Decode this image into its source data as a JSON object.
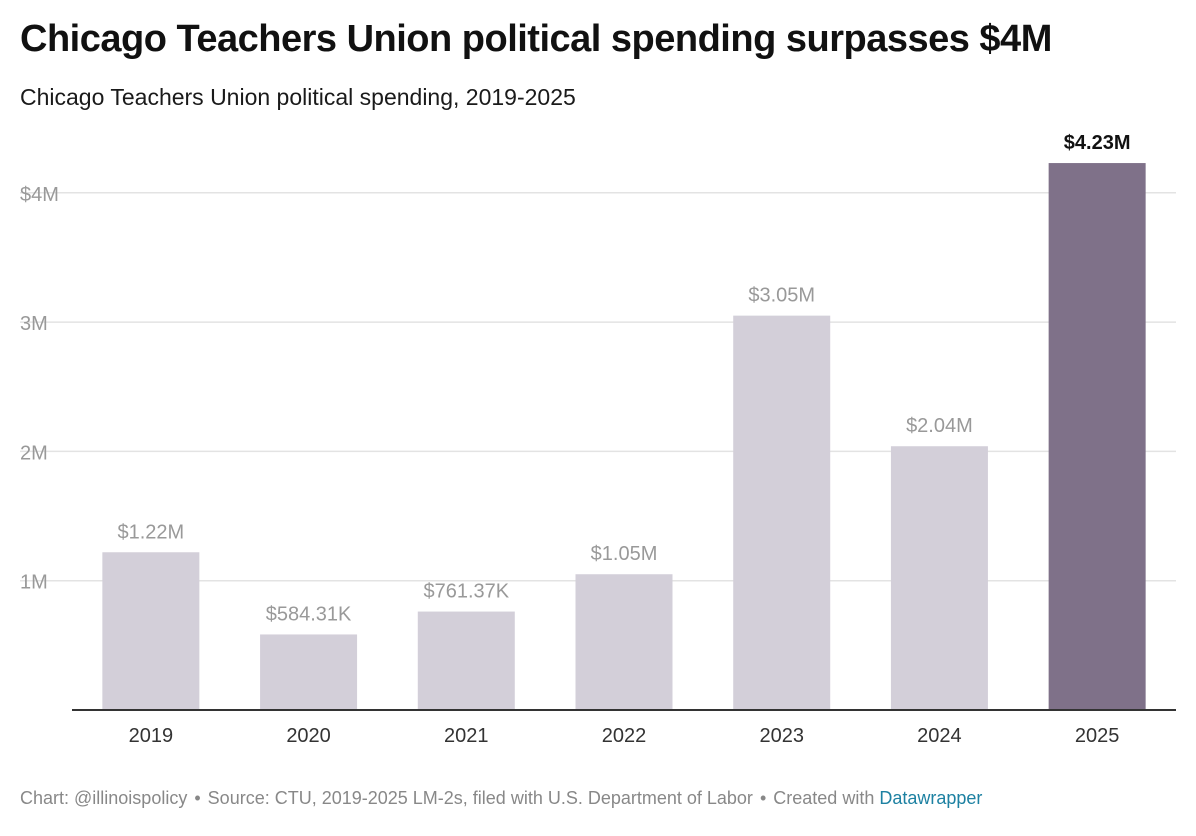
{
  "chart_data": {
    "type": "bar",
    "title": "Chicago Teachers Union political spending surpasses $4M",
    "subtitle": "Chicago Teachers Union political spending, 2019-2025",
    "categories": [
      "2019",
      "2020",
      "2021",
      "2022",
      "2023",
      "2024",
      "2025"
    ],
    "values": [
      1220000,
      584310,
      761370,
      1050000,
      3050000,
      2040000,
      4230000
    ],
    "data_labels": [
      "$1.22M",
      "$584.31K",
      "$761.37K",
      "$1.05M",
      "$3.05M",
      "$2.04M",
      "$4.23M"
    ],
    "highlighted_index": 6,
    "y_ticks": [
      {
        "value": 1000000,
        "label": "1M"
      },
      {
        "value": 2000000,
        "label": "2M"
      },
      {
        "value": 3000000,
        "label": "3M"
      },
      {
        "value": 4000000,
        "label": "$4M"
      }
    ],
    "ylim": [
      0,
      4230000
    ],
    "xlabel": "",
    "ylabel": "",
    "grid": true,
    "legend": "none",
    "colors": {
      "bar": "#d3cfd9",
      "highlight_bar": "#7f7189",
      "label": "#999999",
      "highlight_label": "#111111",
      "grid": "#e3e3e3",
      "axis": "#333333",
      "tick_label": "#999999"
    }
  },
  "footer": {
    "chart_credit": "Chart: @illinoispolicy",
    "separator": "•",
    "source": "Source: CTU, 2019-2025 LM-2s, filed with U.S. Department of Labor",
    "created_with": "Created with",
    "tool_link": "Datawrapper",
    "link_color": "#1d81a2"
  }
}
